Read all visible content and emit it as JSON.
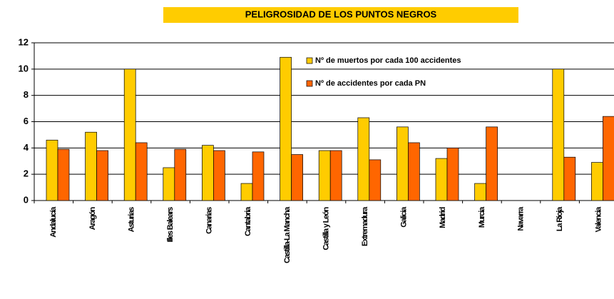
{
  "chart_data": {
    "type": "bar",
    "title": "PELIGROSIDAD DE LOS PUNTOS NEGROS",
    "categories": [
      "Andalucía",
      "Aragón",
      "Asturias",
      "Illes Balears",
      "Canarias",
      "Cantabria",
      "Castilla-La Mancha",
      "Castilla y León",
      "Extremadura",
      "Galicia",
      "Madrid",
      "Murcia",
      "Navarra",
      "La Rioja",
      "Valencia"
    ],
    "series": [
      {
        "name": "Nº de muertos por cada 100 accidentes",
        "color": "#ffcc00",
        "values": [
          4.6,
          5.2,
          10,
          2.5,
          4.2,
          1.3,
          10.9,
          3.8,
          6.3,
          5.6,
          3.2,
          1.3,
          null,
          10,
          2.9
        ]
      },
      {
        "name": "Nº de accidentes por cada PN",
        "color": "#ff6600",
        "values": [
          3.9,
          3.8,
          4.4,
          3.9,
          3.8,
          3.7,
          3.5,
          3.8,
          3.1,
          4.4,
          4.0,
          5.6,
          null,
          3.3,
          6.4
        ]
      }
    ],
    "ylim": [
      0,
      12
    ],
    "yticks": [
      0,
      2,
      4,
      6,
      8,
      10,
      12
    ],
    "grid": true
  }
}
